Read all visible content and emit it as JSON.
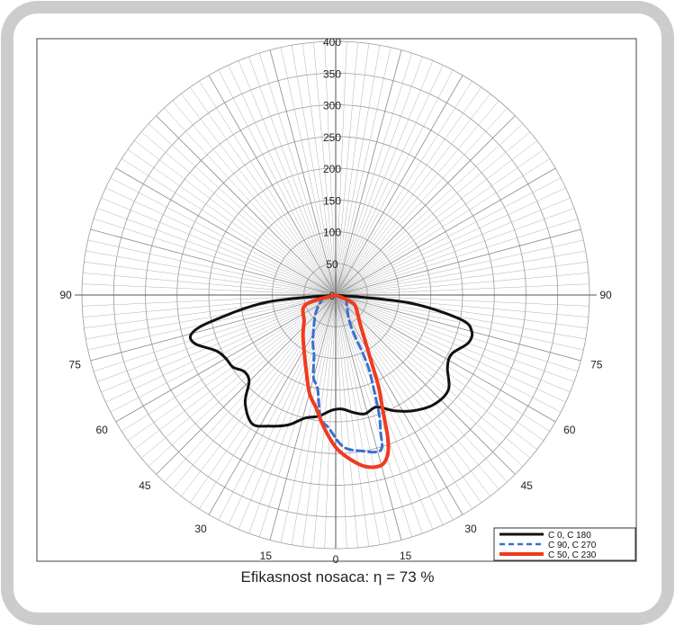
{
  "caption": "Efikasnost nosaca: η = 73 %",
  "chart_data": {
    "type": "polar-line",
    "title": "",
    "radial_ticks": [
      "0",
      "50",
      "100",
      "150",
      "200",
      "250",
      "300",
      "350",
      "400"
    ],
    "radial_range": [
      0,
      400
    ],
    "angle_labels": {
      "left": [
        "90",
        "75",
        "60",
        "45",
        "30",
        "15"
      ],
      "right": [
        "90",
        "75",
        "60",
        "45",
        "30",
        "15"
      ],
      "bottom": "0"
    },
    "grid": true,
    "legend_position": "bottom-right",
    "legend": [
      "C 0, C 180",
      "C 90, C 270",
      "C 50, C 230"
    ],
    "series": [
      {
        "name": "C 0, C 180",
        "color": "#111111",
        "style": "solid",
        "points": [
          {
            "angle": -90,
            "r": 0
          },
          {
            "angle": -84,
            "r": 110
          },
          {
            "angle": -78,
            "r": 200
          },
          {
            "angle": -75,
            "r": 235
          },
          {
            "angle": -71,
            "r": 235
          },
          {
            "angle": -65,
            "r": 208
          },
          {
            "angle": -60,
            "r": 200
          },
          {
            "angle": -55,
            "r": 198
          },
          {
            "angle": -50,
            "r": 188
          },
          {
            "angle": -45,
            "r": 193
          },
          {
            "angle": -40,
            "r": 222
          },
          {
            "angle": -33,
            "r": 242
          },
          {
            "angle": -27,
            "r": 232
          },
          {
            "angle": -20,
            "r": 218
          },
          {
            "angle": -14,
            "r": 200
          },
          {
            "angle": -8,
            "r": 193
          },
          {
            "angle": -2,
            "r": 182
          },
          {
            "angle": 3,
            "r": 180
          },
          {
            "angle": 9,
            "r": 188
          },
          {
            "angle": 14,
            "r": 193
          },
          {
            "angle": 20,
            "r": 188
          },
          {
            "angle": 27,
            "r": 205
          },
          {
            "angle": 34,
            "r": 220
          },
          {
            "angle": 42,
            "r": 232
          },
          {
            "angle": 50,
            "r": 232
          },
          {
            "angle": 57,
            "r": 210
          },
          {
            "angle": 63,
            "r": 205
          },
          {
            "angle": 70,
            "r": 222
          },
          {
            "angle": 75,
            "r": 222
          },
          {
            "angle": 79,
            "r": 200
          },
          {
            "angle": 84,
            "r": 115
          },
          {
            "angle": 90,
            "r": 0
          }
        ]
      },
      {
        "name": "C 90, C 270",
        "color": "#3a6fd0",
        "style": "dashed",
        "points": [
          {
            "angle": -90,
            "r": 0
          },
          {
            "angle": -75,
            "r": 20
          },
          {
            "angle": -50,
            "r": 40
          },
          {
            "angle": -35,
            "r": 60
          },
          {
            "angle": -25,
            "r": 85
          },
          {
            "angle": -20,
            "r": 100
          },
          {
            "angle": -15,
            "r": 135
          },
          {
            "angle": -11,
            "r": 150
          },
          {
            "angle": -7,
            "r": 195
          },
          {
            "angle": -3,
            "r": 210
          },
          {
            "angle": 3,
            "r": 240
          },
          {
            "angle": 10,
            "r": 250
          },
          {
            "angle": 15,
            "r": 256
          },
          {
            "angle": 17,
            "r": 250
          },
          {
            "angle": 18,
            "r": 230
          },
          {
            "angle": 20,
            "r": 200
          },
          {
            "angle": 22,
            "r": 160
          },
          {
            "angle": 24,
            "r": 130
          },
          {
            "angle": 25,
            "r": 100
          },
          {
            "angle": 25,
            "r": 75
          },
          {
            "angle": 26,
            "r": 55
          },
          {
            "angle": 30,
            "r": 40
          },
          {
            "angle": 45,
            "r": 25
          },
          {
            "angle": 70,
            "r": 16
          },
          {
            "angle": 90,
            "r": 0
          }
        ]
      },
      {
        "name": "C 50, C 230",
        "color": "#f03a1e",
        "style": "solid",
        "points": [
          {
            "angle": -90,
            "r": 0
          },
          {
            "angle": -72,
            "r": 50
          },
          {
            "angle": -50,
            "r": 65
          },
          {
            "angle": -40,
            "r": 80
          },
          {
            "angle": -30,
            "r": 100
          },
          {
            "angle": -22,
            "r": 125
          },
          {
            "angle": -15,
            "r": 160
          },
          {
            "angle": -10,
            "r": 180
          },
          {
            "angle": -5,
            "r": 210
          },
          {
            "angle": 0,
            "r": 240
          },
          {
            "angle": 5,
            "r": 260
          },
          {
            "angle": 10,
            "r": 275
          },
          {
            "angle": 15,
            "r": 278
          },
          {
            "angle": 18,
            "r": 265
          },
          {
            "angle": 20,
            "r": 240
          },
          {
            "angle": 22,
            "r": 200
          },
          {
            "angle": 25,
            "r": 160
          },
          {
            "angle": 28,
            "r": 120
          },
          {
            "angle": 32,
            "r": 90
          },
          {
            "angle": 40,
            "r": 60
          },
          {
            "angle": 50,
            "r": 45
          },
          {
            "angle": 65,
            "r": 30
          },
          {
            "angle": 90,
            "r": 0
          }
        ]
      }
    ]
  }
}
